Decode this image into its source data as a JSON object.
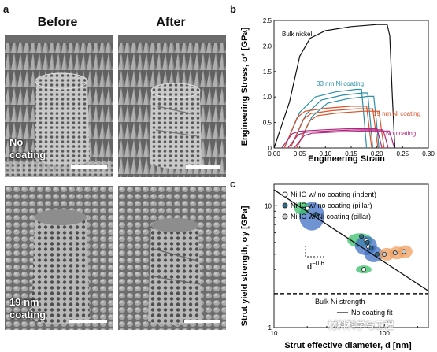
{
  "figure": {
    "panel_a": {
      "letter": "a",
      "col_before": "Before",
      "col_after": "After",
      "row1_label_line1": "No",
      "row1_label_line2": "coating",
      "row2_label_line1": "19 nm",
      "row2_label_line2": "coating"
    },
    "panel_b": {
      "letter": "b",
      "ylabel": "Engineering Stress, σ* [GPa]",
      "xlabel": "Engineering Strain",
      "label_bulk": "Bulk nickel",
      "label_33": "33 nm Ni coating",
      "label_19": "19 nm Ni coating",
      "label_none": "No coating"
    },
    "panel_c": {
      "letter": "c",
      "ylabel": "Strut yield strength, σy [GPa]",
      "xlabel": "Strut effective diameter, d [nm]",
      "legend": [
        "Ni IO w/ no coating (indent)",
        "Ni IO w/ no coating (pillar)",
        "Ni IO w/ Ni coating  (pillar)"
      ],
      "slope_label": "d",
      "slope_exp": "−0.6",
      "bulk_label": "Bulk Ni strength",
      "fit_label": "No coating fit"
    },
    "watermark": "材料科学与工程"
  },
  "colors": {
    "bulk": "#111111",
    "coat33": "#2a8fa8",
    "coat19": "#d9532b",
    "none": "#b0297f",
    "blue_blob": "#3f6fc4",
    "green_blob": "#39c06a",
    "orange_blob": "#f0a060"
  },
  "chart_data": [
    {
      "type": "line",
      "xlabel": "Engineering Strain",
      "ylabel": "Engineering Stress, σ* [GPa]",
      "xlim": [
        0,
        0.3
      ],
      "ylim": [
        0,
        2.5
      ],
      "xticks": [
        "0.00",
        "0.05",
        "0.10",
        "0.15",
        "0.20",
        "0.25",
        "0.30"
      ],
      "yticks": [
        "0",
        "0.5",
        "1.0",
        "1.5",
        "2.0",
        "2.5"
      ],
      "series": [
        {
          "name": "Bulk nickel",
          "color": "#111111",
          "x": [
            0.0,
            0.03,
            0.05,
            0.07,
            0.1,
            0.15,
            0.2,
            0.22,
            0.225,
            0.23,
            0.235
          ],
          "y": [
            0.0,
            0.9,
            1.8,
            2.15,
            2.3,
            2.38,
            2.42,
            2.42,
            2.2,
            1.0,
            0.0
          ]
        },
        {
          "name": "33 nm Ni coating",
          "color": "#2a8fa8",
          "x": [
            0.02,
            0.05,
            0.08,
            0.12,
            0.16,
            0.17,
            0.175,
            0.18
          ],
          "y": [
            0.0,
            0.7,
            1.0,
            1.1,
            1.15,
            1.15,
            0.6,
            0.0
          ]
        },
        {
          "name": "19 nm Ni coating",
          "color": "#d9532b",
          "x": [
            0.02,
            0.045,
            0.06,
            0.1,
            0.15,
            0.18,
            0.185,
            0.19
          ],
          "y": [
            0.0,
            0.6,
            0.72,
            0.78,
            0.82,
            0.82,
            0.4,
            0.0
          ]
        },
        {
          "name": "No coating",
          "color": "#b0297f",
          "x": [
            0.015,
            0.035,
            0.05,
            0.1,
            0.15,
            0.2,
            0.205,
            0.21
          ],
          "y": [
            0.0,
            0.28,
            0.33,
            0.36,
            0.38,
            0.38,
            0.2,
            0.0
          ]
        }
      ]
    },
    {
      "type": "scatter",
      "xlabel": "Strut effective diameter, d [nm]",
      "ylabel": "Strut yield strength, σy [GPa]",
      "xscale": "log",
      "yscale": "log",
      "xlim": [
        10,
        250
      ],
      "ylim": [
        1,
        15
      ],
      "xticks": [
        "10",
        "100"
      ],
      "yticks": [
        "1",
        "10"
      ],
      "series": [
        {
          "name": "Ni IO w/ no coating (indent)",
          "x": [
            20,
            65,
            68,
            72
          ],
          "y": [
            9.5,
            3.0,
            5.2,
            4.6
          ]
        },
        {
          "name": "Ni IO w/ no coating (pillar)",
          "x": [
            24,
            62,
            70,
            76,
            86
          ],
          "y": [
            8.5,
            5.6,
            5.0,
            4.5,
            4.0
          ]
        },
        {
          "name": "Ni IO w/ Ni coating  (pillar)",
          "x": [
            100,
            125,
            150
          ],
          "y": [
            4.0,
            4.1,
            4.2
          ]
        },
        {
          "name": "No coating fit",
          "x": [
            10,
            250
          ],
          "y": [
            13.5,
            2.0
          ]
        },
        {
          "name": "Bulk Ni strength",
          "x": [
            10,
            250
          ],
          "y": [
            1.9,
            1.9
          ]
        }
      ]
    }
  ]
}
